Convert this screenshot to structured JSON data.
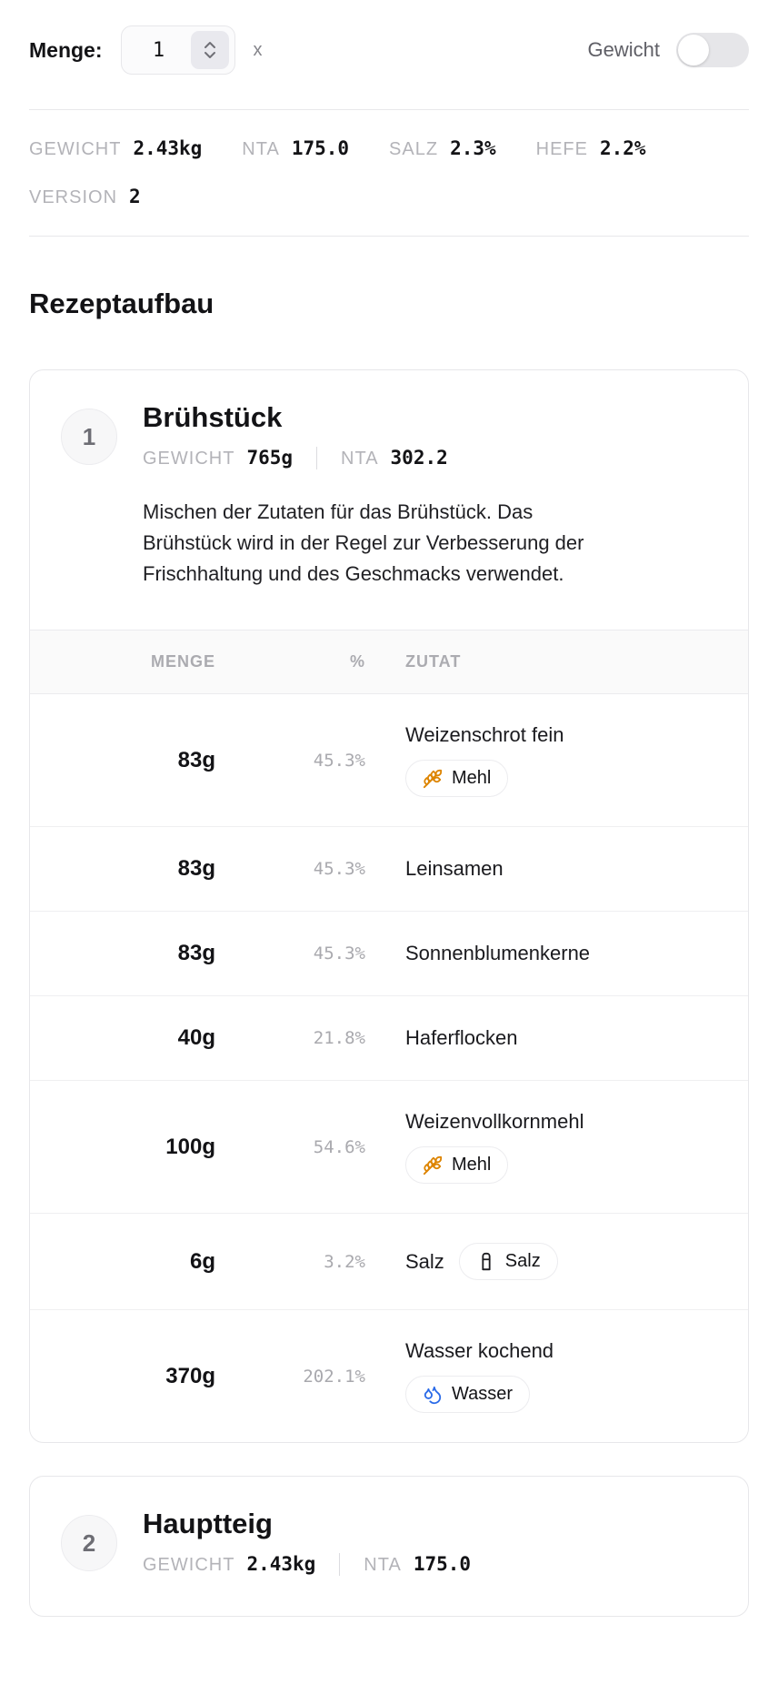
{
  "toolbar": {
    "menge_label": "Menge:",
    "menge_value": "1",
    "multiplier_label": "x",
    "gewicht_toggle_label": "Gewicht",
    "gewicht_toggle_state": "off"
  },
  "summary": {
    "stats": [
      {
        "label": "GEWICHT",
        "value": "2.43kg"
      },
      {
        "label": "NTA",
        "value": "175.0"
      },
      {
        "label": "SALZ",
        "value": "2.3%"
      },
      {
        "label": "HEFE",
        "value": "2.2%"
      },
      {
        "label": "VERSION",
        "value": "2"
      }
    ]
  },
  "section_title": "Rezeptaufbau",
  "colors": {
    "wheat": "#dd8400",
    "water": "#2b6be8",
    "salt": "#1b1b1f"
  },
  "cards": [
    {
      "number": "1",
      "title": "Brühstück",
      "stats": [
        {
          "label": "GEWICHT",
          "value": "765g"
        },
        {
          "label": "NTA",
          "value": "302.2"
        }
      ],
      "description": "Mischen der Zutaten für das Brühstück. Das Brühstück wird in der Regel zur Verbesserung der Frischhaltung und des Geschmacks verwendet.",
      "table": {
        "headers": [
          "MENGE",
          "%",
          "ZUTAT"
        ],
        "rows": [
          {
            "menge": "83g",
            "pct": "45.3%",
            "zutat": "Weizenschrot fein",
            "badge": {
              "label": "Mehl",
              "icon": "wheat"
            }
          },
          {
            "menge": "83g",
            "pct": "45.3%",
            "zutat": "Leinsamen"
          },
          {
            "menge": "83g",
            "pct": "45.3%",
            "zutat": "Sonnenblumenkerne"
          },
          {
            "menge": "40g",
            "pct": "21.8%",
            "zutat": "Haferflocken"
          },
          {
            "menge": "100g",
            "pct": "54.6%",
            "zutat": "Weizenvollkornmehl",
            "badge": {
              "label": "Mehl",
              "icon": "wheat"
            }
          },
          {
            "menge": "6g",
            "pct": "3.2%",
            "zutat": "Salz",
            "badge": {
              "label": "Salz",
              "icon": "salt"
            },
            "badge_inline": true
          },
          {
            "menge": "370g",
            "pct": "202.1%",
            "zutat": "Wasser kochend",
            "badge": {
              "label": "Wasser",
              "icon": "water"
            }
          }
        ]
      }
    },
    {
      "number": "2",
      "title": "Hauptteig",
      "stats": [
        {
          "label": "GEWICHT",
          "value": "2.43kg"
        },
        {
          "label": "NTA",
          "value": "175.0"
        }
      ]
    }
  ]
}
